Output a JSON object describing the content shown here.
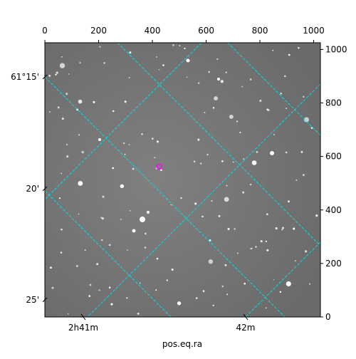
{
  "chart_data": {
    "type": "image",
    "xlabel": "pos.eq.ra",
    "xlim": [
      0,
      1025
    ],
    "ylim": [
      0,
      1025
    ],
    "xticks": [
      0,
      200,
      400,
      600,
      800,
      1000
    ],
    "yticks": [
      0,
      200,
      400,
      600,
      800,
      1000
    ],
    "ra_tick_labels": [
      "2h41m",
      "42m"
    ],
    "dec_tick_labels": [
      "61°15'",
      "20'",
      "25'"
    ],
    "grid_color": "#00e0e0",
    "marker": {
      "x": 426,
      "y": 562,
      "color": "#ff00ff"
    }
  }
}
